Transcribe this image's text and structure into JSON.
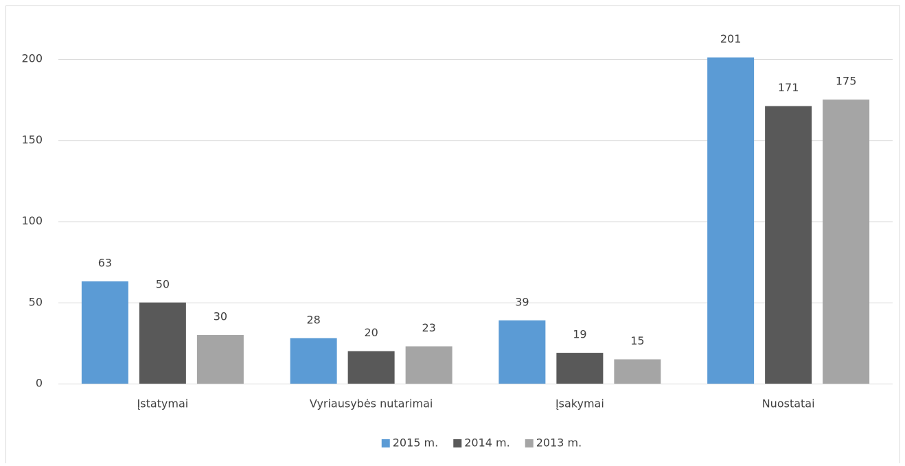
{
  "chart_data": {
    "type": "bar",
    "categories": [
      "Įstatymai",
      "Vyriausybės nutarimai",
      "Įsakymai",
      "Nuostatai"
    ],
    "series": [
      {
        "name": "2015 m.",
        "color": "#5b9bd5",
        "values": [
          63,
          28,
          39,
          201
        ]
      },
      {
        "name": "2014 m.",
        "color": "#595959",
        "values": [
          50,
          20,
          19,
          171
        ]
      },
      {
        "name": "2013 m.",
        "color": "#a5a5a5",
        "values": [
          30,
          23,
          15,
          175
        ]
      }
    ],
    "ylim": [
      0,
      220
    ],
    "yticks": [
      0,
      50,
      100,
      150,
      200
    ],
    "grid": true,
    "legend": "bottom"
  }
}
